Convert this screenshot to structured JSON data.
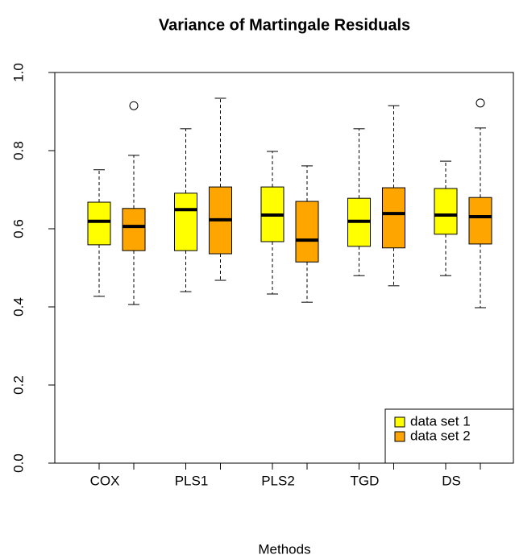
{
  "chart_data": {
    "type": "box",
    "title": "Variance of Martingale Residuals",
    "x_label": "Methods",
    "categories": [
      "COX",
      "PLS1",
      "PLS2",
      "TGD",
      "DS"
    ],
    "ylim": [
      0,
      1
    ],
    "yticks": [
      {
        "value": 0,
        "label": "0.0"
      },
      0.2,
      0.4,
      0.6,
      0.8,
      {
        "value": 1,
        "label": "1.0"
      }
    ],
    "legend_position": "bottomright",
    "series": [
      {
        "name": "data set 1",
        "color": "#ffff00",
        "boxes": [
          {
            "low": 0.427,
            "q1": 0.559,
            "median": 0.619,
            "q3": 0.668,
            "high": 0.751,
            "outliers": []
          },
          {
            "low": 0.439,
            "q1": 0.544,
            "median": 0.649,
            "q3": 0.691,
            "high": 0.856,
            "outliers": []
          },
          {
            "low": 0.433,
            "q1": 0.567,
            "median": 0.635,
            "q3": 0.707,
            "high": 0.798,
            "outliers": []
          },
          {
            "low": 0.48,
            "q1": 0.555,
            "median": 0.619,
            "q3": 0.678,
            "high": 0.856,
            "outliers": []
          },
          {
            "low": 0.48,
            "q1": 0.586,
            "median": 0.635,
            "q3": 0.703,
            "high": 0.773,
            "outliers": []
          }
        ]
      },
      {
        "name": "data set 2",
        "color": "#ffa500",
        "boxes": [
          {
            "low": 0.406,
            "q1": 0.544,
            "median": 0.606,
            "q3": 0.652,
            "high": 0.788,
            "outliers": [
              0.915
            ]
          },
          {
            "low": 0.468,
            "q1": 0.536,
            "median": 0.623,
            "q3": 0.707,
            "high": 0.934,
            "outliers": []
          },
          {
            "low": 0.412,
            "q1": 0.515,
            "median": 0.571,
            "q3": 0.67,
            "high": 0.761,
            "outliers": []
          },
          {
            "low": 0.454,
            "q1": 0.551,
            "median": 0.639,
            "q3": 0.705,
            "high": 0.915,
            "outliers": []
          },
          {
            "low": 0.398,
            "q1": 0.561,
            "median": 0.631,
            "q3": 0.68,
            "high": 0.858,
            "outliers": [
              0.922
            ]
          }
        ]
      }
    ]
  }
}
